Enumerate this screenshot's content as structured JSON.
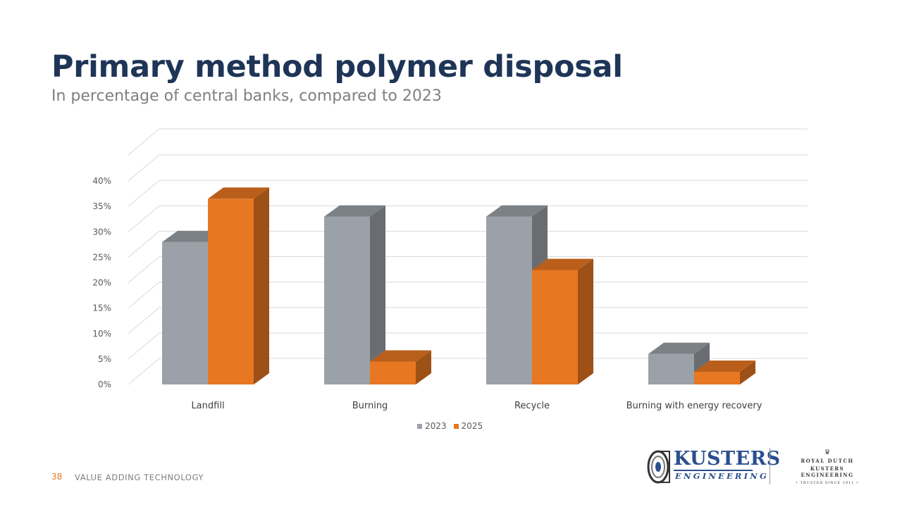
{
  "slide": {
    "title": "Primary method polymer disposal",
    "subtitle": "In percentage of central banks, compared to 2023",
    "page_number": "38",
    "footer_text": "VALUE ADDING TECHNOLOGY"
  },
  "branding": {
    "logo_word1": "KUSTERS",
    "logo_word2": "ENGINEERING",
    "royal_line1": "ROYAL DUTCH",
    "royal_line2": "KUSTERS ENGINEERING",
    "royal_line3": "• TRUSTED SINCE 1911 •",
    "crown_icon": "crown-icon",
    "logo_icon": "kusters-roll-icon"
  },
  "colors": {
    "title": "#1e3557",
    "series_2023": "#9ba1a8",
    "series_2025": "#e87722",
    "logo": "#2a4f8f"
  },
  "chart_data": {
    "type": "bar",
    "style": "3d-clustered-column",
    "categories": [
      "Landfill",
      "Burning",
      "Recycle",
      "Burning with energy recovery"
    ],
    "series": [
      {
        "name": "2023",
        "values": [
          28,
          33,
          33,
          6
        ],
        "color": "#9ba1a8"
      },
      {
        "name": "2025",
        "values": [
          36.5,
          4.5,
          22.5,
          2.5
        ],
        "color": "#e87722"
      }
    ],
    "ylim": [
      0,
      40
    ],
    "yticks": [
      "0%",
      "5%",
      "10%",
      "15%",
      "20%",
      "25%",
      "30%",
      "35%",
      "40%"
    ],
    "grid": true,
    "legend": "bottom-center",
    "xlabel": "",
    "ylabel": ""
  }
}
